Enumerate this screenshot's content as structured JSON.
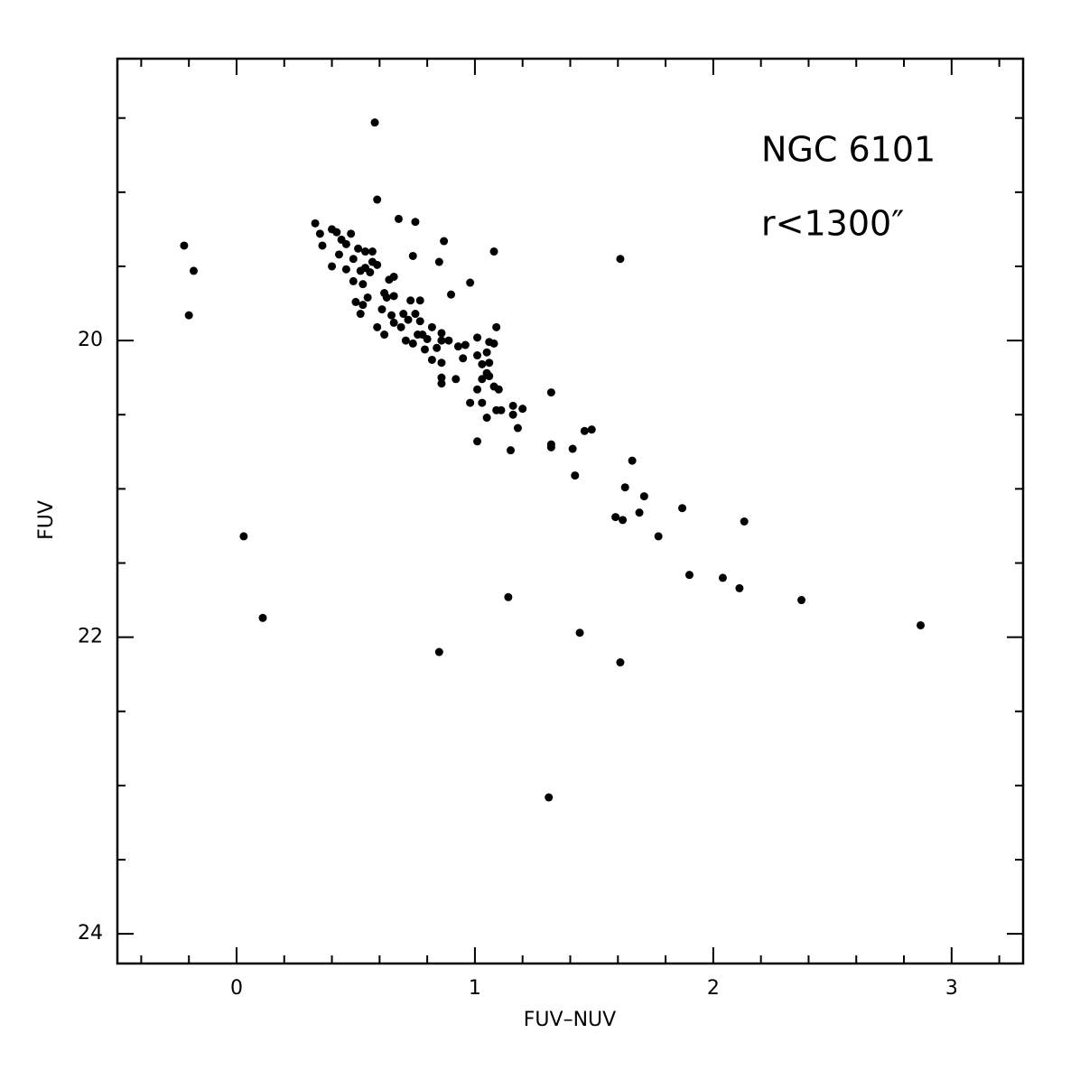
{
  "chart_data": {
    "type": "scatter",
    "x_label": "FUV–NUV",
    "y_label": "FUV",
    "annotations": [
      "NGC 6101",
      "r<1300″"
    ],
    "color": "#000000",
    "xlim": [
      -0.5,
      3.3
    ],
    "ylim": [
      24.2,
      18.1
    ],
    "xticks": [
      0,
      1,
      2,
      3
    ],
    "yticks": [
      20,
      22,
      24
    ],
    "x_minor_ticks": [
      -0.4,
      -0.2,
      0.2,
      0.4,
      0.6,
      0.8,
      1.2,
      1.4,
      1.6,
      1.8,
      2.2,
      2.4,
      2.6,
      2.8,
      3.2
    ],
    "y_minor_ticks": [
      18.5,
      19,
      19.5,
      20.5,
      21,
      21.5,
      22.5,
      23,
      23.5
    ],
    "x": [
      0.58,
      0.59,
      -0.22,
      -0.18,
      -0.2,
      0.03,
      0.11,
      0.85,
      1.31,
      1.14,
      1.44,
      1.61,
      2.87,
      2.37,
      2.11,
      2.04,
      1.9,
      1.77,
      2.13,
      1.87,
      1.71,
      1.69,
      1.63,
      1.59,
      1.62,
      1.66,
      1.42,
      1.41,
      1.32,
      1.32,
      1.32,
      1.46,
      1.49,
      1.15,
      1.01,
      1.61,
      1.08,
      0.87,
      0.85,
      0.74,
      0.68,
      0.75,
      0.98,
      0.9,
      1.09,
      0.33,
      0.35,
      0.36,
      0.4,
      0.42,
      0.44,
      0.48,
      0.46,
      0.43,
      0.4,
      0.49,
      0.51,
      0.54,
      0.57,
      0.46,
      0.49,
      0.52,
      0.54,
      0.56,
      0.57,
      0.59,
      0.53,
      0.5,
      0.53,
      0.55,
      0.52,
      0.62,
      0.64,
      0.66,
      0.66,
      0.63,
      0.61,
      0.65,
      0.59,
      0.62,
      0.66,
      0.69,
      0.73,
      0.77,
      0.7,
      0.72,
      0.75,
      0.77,
      0.71,
      0.74,
      0.76,
      0.78,
      0.8,
      0.82,
      0.86,
      0.86,
      0.79,
      0.84,
      0.82,
      0.86,
      0.89,
      0.93,
      0.86,
      0.86,
      0.92,
      0.95,
      0.96,
      1.01,
      1.01,
      1.05,
      1.06,
      1.08,
      1.03,
      1.05,
      1.03,
      1.06,
      1.01,
      1.08,
      1.1,
      0.98,
      1.03,
      1.09,
      1.11,
      1.05,
      1.16,
      1.2,
      1.16,
      1.18,
      1.06
    ],
    "values": [
      18.53,
      19.05,
      19.36,
      19.53,
      19.83,
      21.32,
      21.87,
      22.1,
      23.08,
      21.73,
      21.97,
      22.17,
      21.92,
      21.75,
      21.67,
      21.6,
      21.58,
      21.32,
      21.22,
      21.13,
      21.05,
      21.16,
      20.99,
      21.19,
      21.21,
      20.81,
      20.91,
      20.73,
      20.7,
      20.72,
      20.35,
      20.61,
      20.6,
      20.74,
      20.68,
      19.45,
      19.4,
      19.33,
      19.47,
      19.43,
      19.18,
      19.2,
      19.61,
      19.69,
      19.91,
      19.21,
      19.28,
      19.36,
      19.25,
      19.27,
      19.32,
      19.28,
      19.35,
      19.42,
      19.5,
      19.45,
      19.38,
      19.4,
      19.4,
      19.52,
      19.6,
      19.53,
      19.51,
      19.54,
      19.47,
      19.49,
      19.62,
      19.74,
      19.76,
      19.71,
      19.82,
      19.68,
      19.59,
      19.57,
      19.7,
      19.71,
      19.79,
      19.83,
      19.91,
      19.96,
      19.88,
      19.91,
      19.73,
      19.73,
      19.82,
      19.86,
      19.82,
      19.87,
      20.0,
      20.02,
      19.96,
      19.96,
      19.99,
      19.91,
      19.95,
      20.0,
      20.06,
      20.05,
      20.13,
      20.15,
      20.0,
      20.04,
      20.25,
      20.29,
      20.26,
      20.12,
      20.03,
      19.98,
      20.1,
      20.08,
      20.01,
      20.02,
      20.16,
      20.22,
      20.26,
      20.24,
      20.33,
      20.31,
      20.33,
      20.42,
      20.42,
      20.47,
      20.47,
      20.52,
      20.44,
      20.46,
      20.5,
      20.59,
      20.15
    ]
  }
}
